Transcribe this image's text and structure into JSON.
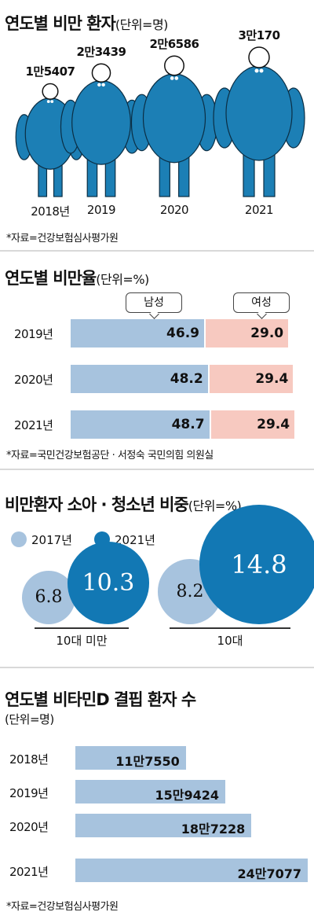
{
  "section1": {
    "title": "연도별 비만 환자",
    "unit": "(단위=명)",
    "source": "*자료=건강보험심사평가원"
  },
  "section2": {
    "title": "연도별 비만율",
    "unit": "(단위=%)",
    "male_label": "남성",
    "female_label": "여성",
    "source": "*자료=국민건강보험공단 · 서정숙 국민의힘 의원실"
  },
  "section3": {
    "title": "비만환자 소아 · 청소년 비중",
    "unit": "(단위=%)",
    "legend_2017": "2017년",
    "legend_2021": "2021년"
  },
  "section4": {
    "title": "연도별 비타민D 결핍 환자 수",
    "unit": "(단위=명)",
    "source": "*자료=건강보험심사평가원"
  },
  "colors": {
    "figure_blue": "#1c7fb5",
    "male_bar": "#a7c3de",
    "female_bar": "#f7c9c0",
    "circle_2017": "#a7c3de",
    "circle_2021": "#1278b4"
  },
  "chart_data": [
    {
      "type": "bar",
      "categories": [
        "2018년",
        "2019",
        "2020",
        "2021"
      ],
      "values": [
        15407,
        23439,
        26586,
        30170
      ],
      "value_labels": [
        "1만5407",
        "2만3439",
        "2만6586",
        "3만170"
      ]
    },
    {
      "type": "bar",
      "categories": [
        "2019년",
        "2020년",
        "2021년"
      ],
      "series": [
        {
          "name": "남성",
          "values": [
            46.9,
            48.2,
            48.7
          ],
          "labels": [
            "46.9",
            "48.2",
            "48.7"
          ]
        },
        {
          "name": "여성",
          "values": [
            29.0,
            29.4,
            29.4
          ],
          "labels": [
            "29.0",
            "29.4",
            "29.4"
          ]
        }
      ]
    },
    {
      "type": "scatter",
      "categories": [
        "10대 미만",
        "10대"
      ],
      "series": [
        {
          "name": "2017년",
          "values": [
            6.8,
            8.2
          ],
          "labels": [
            "6.8",
            "8.2"
          ]
        },
        {
          "name": "2021년",
          "values": [
            10.3,
            14.8
          ],
          "labels": [
            "10.3",
            "14.8"
          ]
        }
      ]
    },
    {
      "type": "bar",
      "categories": [
        "2018년",
        "2019년",
        "2020년",
        "2021년"
      ],
      "values": [
        117550,
        159424,
        187228,
        247077
      ],
      "value_labels": [
        "11만7550",
        "15만9424",
        "18만7228",
        "24만7077"
      ]
    }
  ]
}
